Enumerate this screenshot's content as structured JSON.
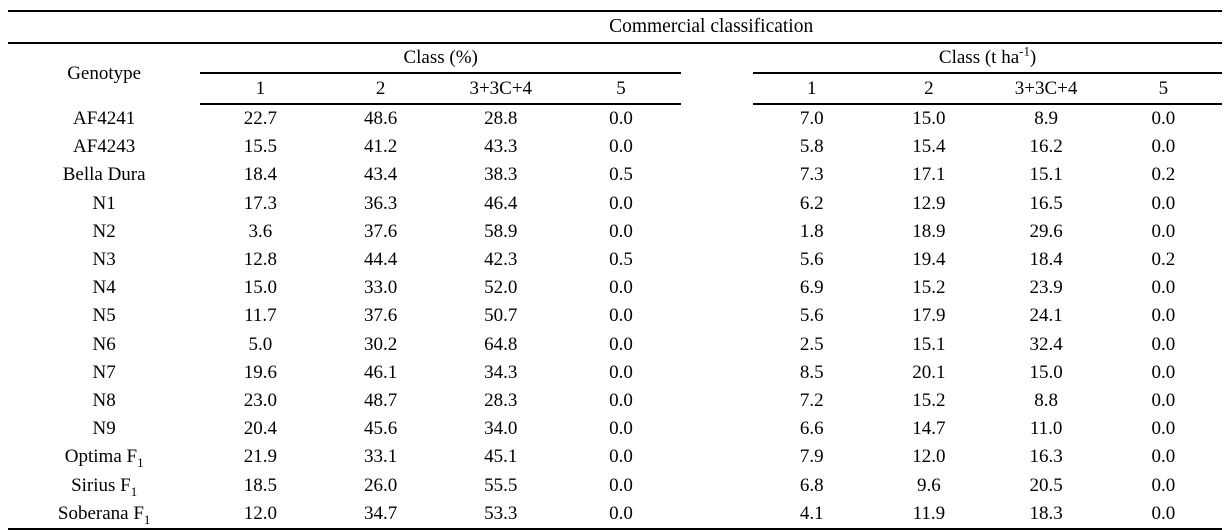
{
  "colors": {
    "background": "#ffffff",
    "text": "#000000",
    "rule": "#000000"
  },
  "table": {
    "title": "Commercial classification",
    "genotype_header": "Genotype",
    "groups": [
      {
        "label_prefix": "Class (%)",
        "label_sup": "",
        "label_suffix": "",
        "subheaders": [
          "1",
          "2",
          "3+3C+4",
          "5"
        ]
      },
      {
        "label_prefix": "Class (t ha",
        "label_sup": "-1",
        "label_suffix": ")",
        "subheaders": [
          "1",
          "2",
          "3+3C+4",
          "5"
        ]
      }
    ],
    "rows": [
      {
        "genotype": "AF4241",
        "genotype_sub": "",
        "class_pct": [
          "22.7",
          "48.6",
          "28.8",
          "0.0"
        ],
        "class_tha": [
          "7.0",
          "15.0",
          "8.9",
          "0.0"
        ]
      },
      {
        "genotype": "AF4243",
        "genotype_sub": "",
        "class_pct": [
          "15.5",
          "41.2",
          "43.3",
          "0.0"
        ],
        "class_tha": [
          "5.8",
          "15.4",
          "16.2",
          "0.0"
        ]
      },
      {
        "genotype": "Bella Dura",
        "genotype_sub": "",
        "class_pct": [
          "18.4",
          "43.4",
          "38.3",
          "0.5"
        ],
        "class_tha": [
          "7.3",
          "17.1",
          "15.1",
          "0.2"
        ]
      },
      {
        "genotype": "N1",
        "genotype_sub": "",
        "class_pct": [
          "17.3",
          "36.3",
          "46.4",
          "0.0"
        ],
        "class_tha": [
          "6.2",
          "12.9",
          "16.5",
          "0.0"
        ]
      },
      {
        "genotype": "N2",
        "genotype_sub": "",
        "class_pct": [
          "3.6",
          "37.6",
          "58.9",
          "0.0"
        ],
        "class_tha": [
          "1.8",
          "18.9",
          "29.6",
          "0.0"
        ]
      },
      {
        "genotype": "N3",
        "genotype_sub": "",
        "class_pct": [
          "12.8",
          "44.4",
          "42.3",
          "0.5"
        ],
        "class_tha": [
          "5.6",
          "19.4",
          "18.4",
          "0.2"
        ]
      },
      {
        "genotype": "N4",
        "genotype_sub": "",
        "class_pct": [
          "15.0",
          "33.0",
          "52.0",
          "0.0"
        ],
        "class_tha": [
          "6.9",
          "15.2",
          "23.9",
          "0.0"
        ]
      },
      {
        "genotype": "N5",
        "genotype_sub": "",
        "class_pct": [
          "11.7",
          "37.6",
          "50.7",
          "0.0"
        ],
        "class_tha": [
          "5.6",
          "17.9",
          "24.1",
          "0.0"
        ]
      },
      {
        "genotype": "N6",
        "genotype_sub": "",
        "class_pct": [
          "5.0",
          "30.2",
          "64.8",
          "0.0"
        ],
        "class_tha": [
          "2.5",
          "15.1",
          "32.4",
          "0.0"
        ]
      },
      {
        "genotype": "N7",
        "genotype_sub": "",
        "class_pct": [
          "19.6",
          "46.1",
          "34.3",
          "0.0"
        ],
        "class_tha": [
          "8.5",
          "20.1",
          "15.0",
          "0.0"
        ]
      },
      {
        "genotype": "N8",
        "genotype_sub": "",
        "class_pct": [
          "23.0",
          "48.7",
          "28.3",
          "0.0"
        ],
        "class_tha": [
          "7.2",
          "15.2",
          "8.8",
          "0.0"
        ]
      },
      {
        "genotype": "N9",
        "genotype_sub": "",
        "class_pct": [
          "20.4",
          "45.6",
          "34.0",
          "0.0"
        ],
        "class_tha": [
          "6.6",
          "14.7",
          "11.0",
          "0.0"
        ]
      },
      {
        "genotype": "Optima F",
        "genotype_sub": "1",
        "class_pct": [
          "21.9",
          "33.1",
          "45.1",
          "0.0"
        ],
        "class_tha": [
          "7.9",
          "12.0",
          "16.3",
          "0.0"
        ]
      },
      {
        "genotype": "Sirius F",
        "genotype_sub": "1",
        "class_pct": [
          "18.5",
          "26.0",
          "55.5",
          "0.0"
        ],
        "class_tha": [
          "6.8",
          "9.6",
          "20.5",
          "0.0"
        ]
      },
      {
        "genotype": "Soberana F",
        "genotype_sub": "1",
        "class_pct": [
          "12.0",
          "34.7",
          "53.3",
          "0.0"
        ],
        "class_tha": [
          "4.1",
          "11.9",
          "18.3",
          "0.0"
        ]
      }
    ]
  }
}
